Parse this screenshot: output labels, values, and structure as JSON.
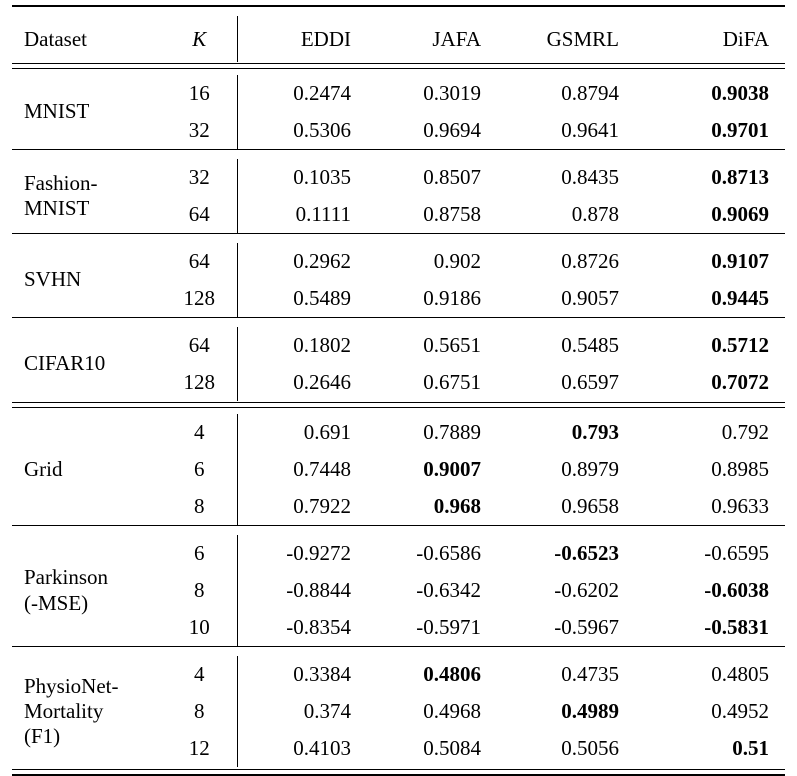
{
  "page": {
    "background": "#ffffff",
    "text_color": "#000000",
    "rule_color": "#000000",
    "bold_meaning": "best result per row"
  },
  "table": {
    "headers": {
      "dataset": "Dataset",
      "k": "K",
      "methods": [
        "EDDI",
        "JAFA",
        "GSMRL",
        "DiFA"
      ]
    },
    "groups": [
      {
        "dataset_lines": [
          "MNIST"
        ],
        "rule_after": "single",
        "rows": [
          {
            "k": "16",
            "values": [
              "0.2474",
              "0.3019",
              "0.8794",
              "0.9038"
            ],
            "bold": [
              false,
              false,
              false,
              true
            ]
          },
          {
            "k": "32",
            "values": [
              "0.5306",
              "0.9694",
              "0.9641",
              "0.9701"
            ],
            "bold": [
              false,
              false,
              false,
              true
            ]
          }
        ]
      },
      {
        "dataset_lines": [
          "Fashion-",
          "MNIST"
        ],
        "rule_after": "single",
        "rows": [
          {
            "k": "32",
            "values": [
              "0.1035",
              "0.8507",
              "0.8435",
              "0.8713"
            ],
            "bold": [
              false,
              false,
              false,
              true
            ]
          },
          {
            "k": "64",
            "values": [
              "0.1111",
              "0.8758",
              "0.878",
              "0.9069"
            ],
            "bold": [
              false,
              false,
              false,
              true
            ]
          }
        ]
      },
      {
        "dataset_lines": [
          "SVHN"
        ],
        "rule_after": "single",
        "rows": [
          {
            "k": "64",
            "values": [
              "0.2962",
              "0.902",
              "0.8726",
              "0.9107"
            ],
            "bold": [
              false,
              false,
              false,
              true
            ]
          },
          {
            "k": "128",
            "values": [
              "0.5489",
              "0.9186",
              "0.9057",
              "0.9445"
            ],
            "bold": [
              false,
              false,
              false,
              true
            ]
          }
        ]
      },
      {
        "dataset_lines": [
          "CIFAR10"
        ],
        "rule_after": "double",
        "rows": [
          {
            "k": "64",
            "values": [
              "0.1802",
              "0.5651",
              "0.5485",
              "0.5712"
            ],
            "bold": [
              false,
              false,
              false,
              true
            ]
          },
          {
            "k": "128",
            "values": [
              "0.2646",
              "0.6751",
              "0.6597",
              "0.7072"
            ],
            "bold": [
              false,
              false,
              false,
              true
            ]
          }
        ]
      },
      {
        "dataset_lines": [
          "Grid"
        ],
        "rule_after": "single",
        "rows": [
          {
            "k": "4",
            "values": [
              "0.691",
              "0.7889",
              "0.793",
              "0.792"
            ],
            "bold": [
              false,
              false,
              true,
              false
            ]
          },
          {
            "k": "6",
            "values": [
              "0.7448",
              "0.9007",
              "0.8979",
              "0.8985"
            ],
            "bold": [
              false,
              true,
              false,
              false
            ]
          },
          {
            "k": "8",
            "values": [
              "0.7922",
              "0.968",
              "0.9658",
              "0.9633"
            ],
            "bold": [
              false,
              true,
              false,
              false
            ]
          }
        ]
      },
      {
        "dataset_lines": [
          "Parkinson",
          "(-MSE)"
        ],
        "rule_after": "single",
        "rows": [
          {
            "k": "6",
            "values": [
              "-0.9272",
              "-0.6586",
              "-0.6523",
              "-0.6595"
            ],
            "bold": [
              false,
              false,
              true,
              false
            ]
          },
          {
            "k": "8",
            "values": [
              "-0.8844",
              "-0.6342",
              "-0.6202",
              "-0.6038"
            ],
            "bold": [
              false,
              false,
              false,
              true
            ]
          },
          {
            "k": "10",
            "values": [
              "-0.8354",
              "-0.5971",
              "-0.5967",
              "-0.5831"
            ],
            "bold": [
              false,
              false,
              false,
              true
            ]
          }
        ]
      },
      {
        "dataset_lines": [
          "PhysioNet-",
          "Mortality",
          "(F1)"
        ],
        "rule_after": "bottom",
        "rows": [
          {
            "k": "4",
            "values": [
              "0.3384",
              "0.4806",
              "0.4735",
              "0.4805"
            ],
            "bold": [
              false,
              true,
              false,
              false
            ]
          },
          {
            "k": "8",
            "values": [
              "0.374",
              "0.4968",
              "0.4989",
              "0.4952"
            ],
            "bold": [
              false,
              false,
              true,
              false
            ]
          },
          {
            "k": "12",
            "values": [
              "0.4103",
              "0.5084",
              "0.5056",
              "0.51"
            ],
            "bold": [
              false,
              false,
              false,
              true
            ]
          }
        ]
      }
    ]
  }
}
